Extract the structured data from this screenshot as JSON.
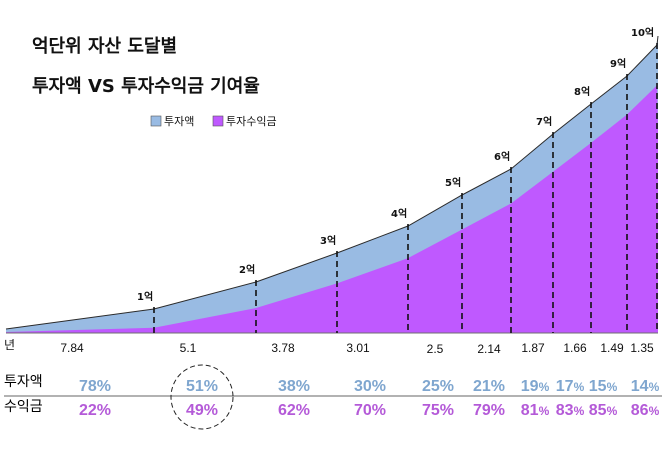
{
  "colors": {
    "investment": "#99BBE3",
    "gain": "#BF59FF",
    "investment_text": "#7FA6CF",
    "gain_text": "#B45AD8"
  },
  "chart_data": {
    "type": "area",
    "stacked": true,
    "title": "억단위 자산 도달별",
    "subtitle": "투자액 VS 투자수익금 기여율",
    "legend": [
      "투자액",
      "투자수익금"
    ],
    "legend_position": "top-left",
    "x_unit_label": "년",
    "milestones": [
      "1억",
      "2억",
      "3억",
      "4억",
      "5억",
      "6억",
      "7억",
      "8억",
      "9억",
      "10억"
    ],
    "years_between": [
      "7.84",
      "5.1",
      "3.78",
      "3.01",
      "2.5",
      "2.14",
      "1.87",
      "1.66",
      "1.49",
      "1.35"
    ],
    "investment_share_pct": [
      "78%",
      "51%",
      "38%",
      "30%",
      "25%",
      "21%",
      "19%",
      "17%",
      "15%",
      "14%"
    ],
    "gain_share_pct": [
      "22%",
      "49%",
      "62%",
      "70%",
      "75%",
      "79%",
      "81%",
      "83%",
      "85%",
      "86%"
    ],
    "highlighted_milestone": "2억",
    "ylim": [
      0,
      10
    ]
  },
  "rows": {
    "investment_label": "투자액",
    "gain_label": "수익금"
  }
}
